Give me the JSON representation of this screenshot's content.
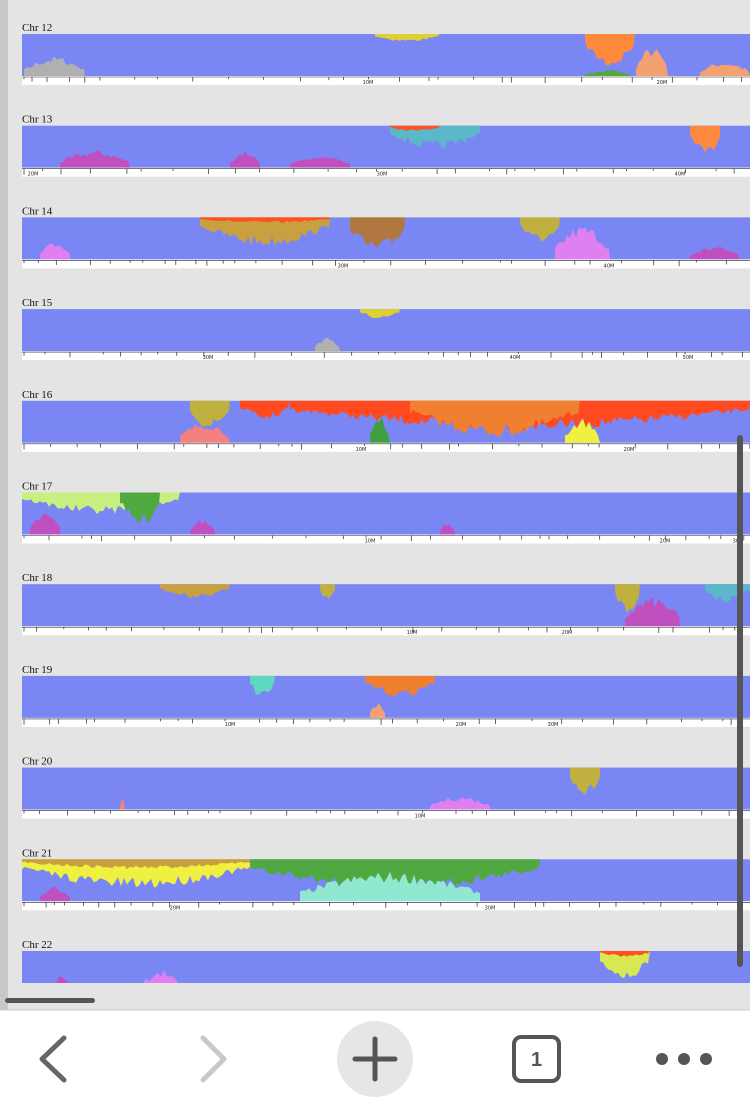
{
  "panels": [
    {
      "label": "Chr 12",
      "axis_labels": [
        "10M",
        "20M"
      ]
    },
    {
      "label": "Chr 13",
      "axis_labels": [
        "20M",
        "30M",
        "40M"
      ]
    },
    {
      "label": "Chr 14",
      "axis_labels": [
        "30M",
        "40M"
      ]
    },
    {
      "label": "Chr 15",
      "axis_labels": [
        "30M",
        "40M",
        "50M"
      ]
    },
    {
      "label": "Chr 16",
      "axis_labels": [
        "10M",
        "20M"
      ]
    },
    {
      "label": "Chr 17",
      "axis_labels": [
        "10M",
        "20M",
        "30M"
      ]
    },
    {
      "label": "Chr 18",
      "axis_labels": [
        "10M",
        "20M"
      ]
    },
    {
      "label": "Chr 19",
      "axis_labels": [
        "10M",
        "20M",
        "30M"
      ]
    },
    {
      "label": "Chr 20",
      "axis_labels": [
        "10M"
      ]
    },
    {
      "label": "Chr 21",
      "axis_labels": [
        "20M",
        "30M"
      ]
    },
    {
      "label": "Chr 22",
      "axis_labels": []
    }
  ],
  "toolbar": {
    "tab_count": "1"
  }
}
